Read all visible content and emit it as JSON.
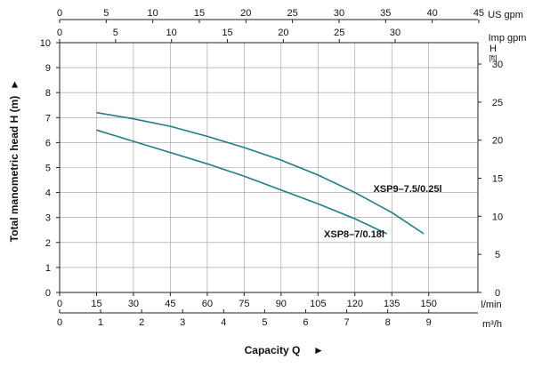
{
  "chart_data": {
    "type": "line",
    "x_unit": "l/min",
    "x_ticks": [
      0,
      15,
      30,
      45,
      60,
      75,
      90,
      105,
      120,
      135,
      150
    ],
    "xlim": [
      0,
      170
    ],
    "y_ticks": [
      0,
      1,
      2,
      3,
      4,
      5,
      6,
      7,
      8,
      9,
      10
    ],
    "ylim": [
      0,
      10
    ],
    "xlabel": "Capacity Q",
    "xlabel_arrow": "►",
    "ylabel": "Total manometric head H (m)",
    "ylabel_arrow": "►",
    "secondary_axes": {
      "bottom_m3h": {
        "unit": "m³/h",
        "ticks": [
          0,
          1,
          2,
          3,
          4,
          5,
          6,
          7,
          8,
          9
        ]
      },
      "top_us_gpm": {
        "unit": "US gpm",
        "ticks": [
          0,
          5,
          10,
          15,
          20,
          25,
          30,
          35,
          40,
          45
        ]
      },
      "top_imp_gpm": {
        "unit": "Imp gpm",
        "ticks": [
          0,
          5,
          10,
          15,
          20,
          25,
          30
        ]
      },
      "right_ft": {
        "unit": "H [ft]",
        "unit_main": "H",
        "unit_sub": "[ft]",
        "ticks": [
          0,
          5,
          10,
          15,
          20,
          25,
          30
        ]
      }
    },
    "grid": true,
    "series": [
      {
        "name": "XSP9–7.5/0.25l",
        "x": [
          15,
          30,
          45,
          60,
          75,
          90,
          105,
          120,
          135,
          148
        ],
        "y": [
          7.2,
          6.95,
          6.65,
          6.25,
          5.8,
          5.3,
          4.7,
          4.0,
          3.2,
          2.35
        ]
      },
      {
        "name": "XSP8–7/0.18l",
        "x": [
          15,
          30,
          45,
          60,
          75,
          90,
          105,
          120,
          133
        ],
        "y": [
          6.5,
          6.05,
          5.6,
          5.15,
          4.65,
          4.1,
          3.55,
          2.95,
          2.35
        ]
      }
    ],
    "colors": {
      "curve": "#1f7d86",
      "grid": "#9a9a9a",
      "frame": "#222222"
    }
  }
}
